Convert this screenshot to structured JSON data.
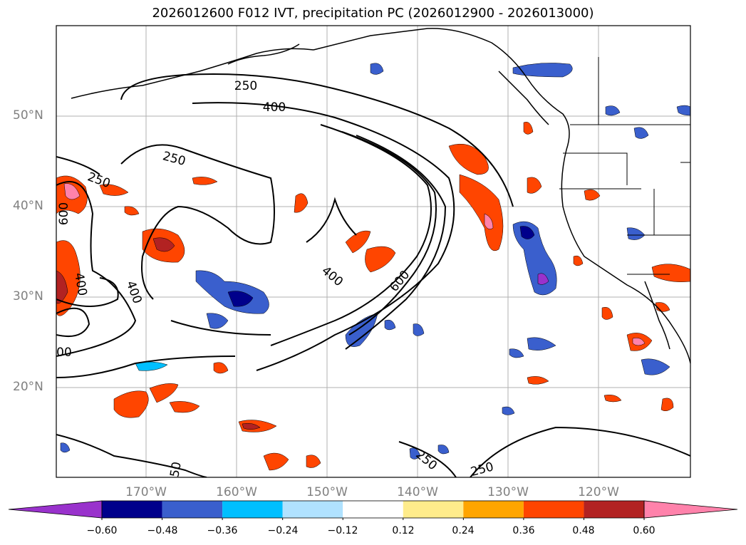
{
  "title": "2026012600 F012 IVT, precipitation PC (2026012900 - 2026013000)",
  "lat_labels": [
    "50°N",
    "40°N",
    "30°N",
    "20°N"
  ],
  "lon_labels": [
    "170°W",
    "160°W",
    "150°W",
    "140°W",
    "130°W",
    "120°W"
  ],
  "ivt_contour_labels": [
    "250",
    "400",
    "250",
    "250",
    "600",
    "400",
    "600",
    "400",
    "400",
    "00",
    "250",
    "250",
    "50"
  ],
  "colorbar": {
    "ticks": [
      "−0.60",
      "−0.48",
      "−0.36",
      "−0.24",
      "−0.12",
      "0.12",
      "0.24",
      "0.36",
      "0.48",
      "0.60"
    ],
    "colors": [
      "#9932cc",
      "#00008b",
      "#3a5fcd",
      "#00bfff",
      "#b0e2ff",
      "#ffffff",
      "#ffec8b",
      "#ffa500",
      "#ff4500",
      "#b22222",
      "#ff82ab"
    ],
    "extend": "both"
  },
  "colors": {
    "grid": "#b0b0b0",
    "contour": "#000000",
    "coast": "#000000"
  }
}
